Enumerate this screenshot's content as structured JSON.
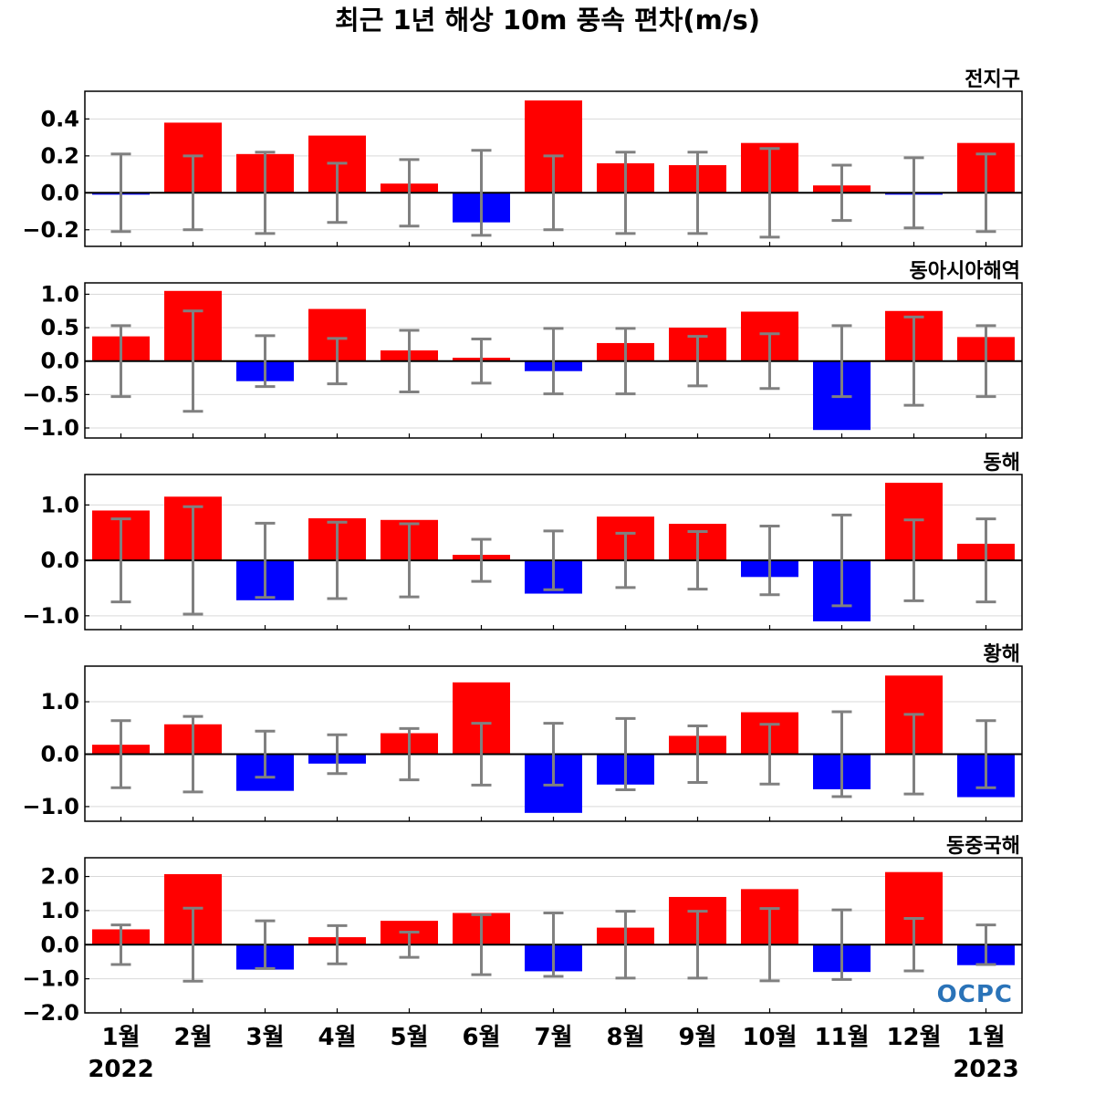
{
  "chart_data": {
    "title": "최근 1년 해상 10m 풍속 편차(m/s)",
    "type": "bar",
    "categories": [
      "1월",
      "2월",
      "3월",
      "4월",
      "5월",
      "6월",
      "7월",
      "8월",
      "9월",
      "10월",
      "11월",
      "12월",
      "1월"
    ],
    "years": [
      "2022",
      "2023"
    ],
    "colors": {
      "positive": "#ff0000",
      "negative": "#0000ff",
      "errorbar": "#808080",
      "grid": "#d9d9d9"
    },
    "logo": "OCPC",
    "panels": [
      {
        "region": "전지구",
        "ylim": [
          -0.29,
          0.55
        ],
        "yticks": [
          -0.2,
          0.0,
          0.2,
          0.4
        ],
        "ytick_labels": [
          "−0.2",
          "0.0",
          "0.2",
          "0.4"
        ],
        "values": [
          -0.01,
          0.38,
          0.21,
          0.31,
          0.05,
          -0.16,
          0.5,
          0.16,
          0.15,
          0.27,
          0.04,
          -0.01,
          0.27
        ],
        "error": [
          0.21,
          0.2,
          0.22,
          0.16,
          0.18,
          0.23,
          0.2,
          0.22,
          0.22,
          0.24,
          0.15,
          0.19,
          0.21
        ]
      },
      {
        "region": "동아시아해역",
        "ylim": [
          -1.15,
          1.17
        ],
        "yticks": [
          -1.0,
          -0.5,
          0.0,
          0.5,
          1.0
        ],
        "ytick_labels": [
          "−1.0",
          "−0.5",
          "0.0",
          "0.5",
          "1.0"
        ],
        "values": [
          0.37,
          1.05,
          -0.3,
          0.78,
          0.16,
          0.05,
          -0.15,
          0.27,
          0.5,
          0.74,
          -1.03,
          0.75,
          0.36
        ],
        "error": [
          0.53,
          0.75,
          0.38,
          0.34,
          0.46,
          0.33,
          0.49,
          0.49,
          0.37,
          0.41,
          0.53,
          0.66,
          0.53
        ]
      },
      {
        "region": "동해",
        "ylim": [
          -1.25,
          1.55
        ],
        "yticks": [
          -1.0,
          0.0,
          1.0
        ],
        "ytick_labels": [
          "−1.0",
          "0.0",
          "1.0"
        ],
        "values": [
          0.9,
          1.15,
          -0.72,
          0.76,
          0.73,
          0.1,
          -0.6,
          0.79,
          0.66,
          -0.3,
          -1.1,
          1.4,
          0.3
        ],
        "error": [
          0.75,
          0.97,
          0.67,
          0.69,
          0.66,
          0.38,
          0.53,
          0.49,
          0.52,
          0.62,
          0.82,
          0.73,
          0.75
        ]
      },
      {
        "region": "황해",
        "ylim": [
          -1.28,
          1.68
        ],
        "yticks": [
          -1.0,
          0.0,
          1.0
        ],
        "ytick_labels": [
          "−1.0",
          "0.0",
          "1.0"
        ],
        "values": [
          0.18,
          0.57,
          -0.7,
          -0.18,
          0.4,
          1.37,
          -1.12,
          -0.58,
          0.35,
          0.8,
          -0.67,
          1.5,
          -0.82
        ],
        "error": [
          0.64,
          0.72,
          0.44,
          0.37,
          0.49,
          0.59,
          0.59,
          0.68,
          0.54,
          0.57,
          0.81,
          0.76,
          0.64
        ]
      },
      {
        "region": "동중국해",
        "ylim": [
          -2.0,
          2.55
        ],
        "yticks": [
          -2.0,
          -1.0,
          0.0,
          1.0,
          2.0
        ],
        "ytick_labels": [
          "−2.0",
          "−1.0",
          "0.0",
          "1.0",
          "2.0"
        ],
        "values": [
          0.45,
          2.07,
          -0.73,
          0.22,
          0.7,
          0.93,
          -0.78,
          0.5,
          1.4,
          1.63,
          -0.8,
          2.13,
          -0.6
        ],
        "error": [
          0.58,
          1.07,
          0.7,
          0.56,
          0.37,
          0.88,
          0.93,
          0.98,
          0.98,
          1.06,
          1.02,
          0.77,
          0.58
        ]
      }
    ]
  }
}
